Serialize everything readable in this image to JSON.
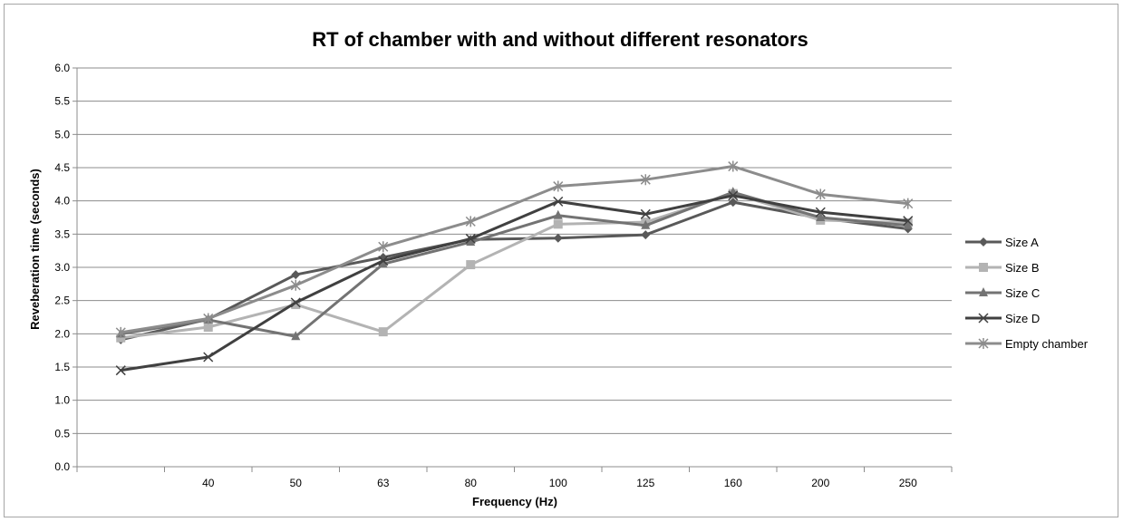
{
  "chart_data": {
    "type": "line",
    "title": "RT of chamber with and without different resonators",
    "xlabel": "Frequency (Hz)",
    "ylabel": "Reveberation time (seconds)",
    "categories": [
      "",
      "40",
      "50",
      "63",
      "80",
      "100",
      "125",
      "160",
      "200",
      "250"
    ],
    "ylim": [
      0,
      6
    ],
    "yticks": [
      "0.0",
      "0.5",
      "1.0",
      "1.5",
      "2.0",
      "2.5",
      "3.0",
      "3.5",
      "4.0",
      "4.5",
      "5.0",
      "5.5",
      "6.0"
    ],
    "grid": true,
    "legend_position": "right",
    "series": [
      {
        "name": "Size A",
        "color": "#595959",
        "marker": "diamond",
        "values": [
          1.91,
          2.22,
          2.89,
          3.15,
          3.42,
          3.44,
          3.49,
          3.98,
          3.74,
          3.58
        ]
      },
      {
        "name": "Size B",
        "color": "#b3b3b3",
        "marker": "square",
        "values": [
          1.94,
          2.1,
          2.44,
          2.03,
          3.04,
          3.65,
          3.68,
          4.11,
          3.71,
          3.67
        ]
      },
      {
        "name": "Size C",
        "color": "#737373",
        "marker": "triangle",
        "values": [
          2.0,
          2.21,
          1.96,
          3.05,
          3.38,
          3.78,
          3.63,
          4.13,
          3.75,
          3.63
        ]
      },
      {
        "name": "Size D",
        "color": "#404040",
        "marker": "x",
        "values": [
          1.45,
          1.65,
          2.47,
          3.1,
          3.43,
          3.99,
          3.8,
          4.08,
          3.83,
          3.7
        ]
      },
      {
        "name": "Empty chamber",
        "color": "#8c8c8c",
        "marker": "star",
        "values": [
          2.02,
          2.23,
          2.73,
          3.31,
          3.69,
          4.22,
          4.32,
          4.52,
          4.1,
          3.96
        ]
      }
    ]
  }
}
